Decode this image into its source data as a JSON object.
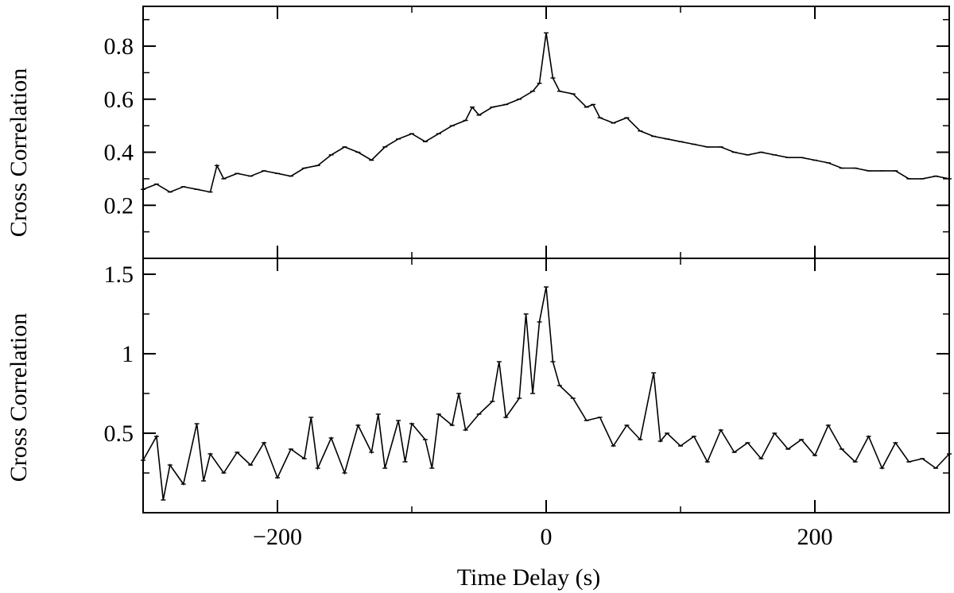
{
  "chart_data": [
    {
      "type": "line",
      "panel": "top",
      "title": "",
      "xlabel": "",
      "ylabel": "Cross Correlation",
      "xlim": [
        -300,
        300
      ],
      "ylim": [
        0.0,
        0.95
      ],
      "yticks": [
        0.2,
        0.4,
        0.6,
        0.8
      ],
      "ytick_labels": [
        "0.2",
        "0.4",
        "0.6",
        "0.8"
      ],
      "yminor": [
        0.1,
        0.3,
        0.5,
        0.7,
        0.9
      ],
      "grid": false,
      "series": [
        {
          "x": [
            -300,
            -290,
            -280,
            -270,
            -260,
            -250,
            -245,
            -240,
            -230,
            -220,
            -210,
            -200,
            -190,
            -180,
            -170,
            -160,
            -150,
            -140,
            -130,
            -120,
            -110,
            -100,
            -90,
            -80,
            -70,
            -60,
            -55,
            -50,
            -40,
            -30,
            -20,
            -10,
            -5,
            0,
            5,
            10,
            20,
            30,
            35,
            40,
            50,
            60,
            70,
            80,
            90,
            100,
            110,
            120,
            130,
            140,
            150,
            160,
            170,
            180,
            190,
            200,
            210,
            220,
            230,
            240,
            250,
            260,
            270,
            280,
            290,
            300
          ],
          "y": [
            0.26,
            0.28,
            0.25,
            0.27,
            0.26,
            0.25,
            0.35,
            0.3,
            0.32,
            0.31,
            0.33,
            0.32,
            0.31,
            0.34,
            0.35,
            0.39,
            0.42,
            0.4,
            0.37,
            0.42,
            0.45,
            0.47,
            0.44,
            0.47,
            0.5,
            0.52,
            0.57,
            0.54,
            0.57,
            0.58,
            0.6,
            0.63,
            0.66,
            0.85,
            0.68,
            0.63,
            0.62,
            0.57,
            0.58,
            0.53,
            0.51,
            0.53,
            0.48,
            0.46,
            0.45,
            0.44,
            0.43,
            0.42,
            0.42,
            0.4,
            0.39,
            0.4,
            0.39,
            0.38,
            0.38,
            0.37,
            0.36,
            0.34,
            0.34,
            0.33,
            0.33,
            0.33,
            0.3,
            0.3,
            0.31,
            0.3
          ]
        }
      ]
    },
    {
      "type": "line",
      "panel": "bottom",
      "title": "",
      "xlabel": "Time Delay (s)",
      "ylabel": "Cross Correlation",
      "xlim": [
        -300,
        300
      ],
      "ylim": [
        0.0,
        1.6
      ],
      "yticks": [
        0.5,
        1.0,
        1.5
      ],
      "ytick_labels": [
        "0.5",
        "1",
        "1.5"
      ],
      "yminor": [
        0.25,
        0.75,
        1.25
      ],
      "xticks": [
        -200,
        0,
        200
      ],
      "xtick_labels": [
        "−200",
        "0",
        "200"
      ],
      "xminor": [
        -300,
        -100,
        100,
        300
      ],
      "grid": false,
      "series": [
        {
          "x": [
            -300,
            -290,
            -285,
            -280,
            -270,
            -260,
            -255,
            -250,
            -240,
            -230,
            -220,
            -210,
            -200,
            -190,
            -180,
            -175,
            -170,
            -160,
            -150,
            -140,
            -130,
            -125,
            -120,
            -110,
            -105,
            -100,
            -90,
            -85,
            -80,
            -70,
            -65,
            -60,
            -50,
            -40,
            -35,
            -30,
            -20,
            -15,
            -10,
            -5,
            0,
            5,
            10,
            20,
            30,
            40,
            50,
            60,
            70,
            80,
            85,
            90,
            100,
            110,
            120,
            130,
            140,
            150,
            160,
            170,
            180,
            190,
            200,
            210,
            220,
            230,
            240,
            250,
            260,
            270,
            280,
            290,
            300
          ],
          "y": [
            0.33,
            0.48,
            0.08,
            0.3,
            0.18,
            0.56,
            0.2,
            0.37,
            0.25,
            0.38,
            0.3,
            0.44,
            0.22,
            0.4,
            0.34,
            0.6,
            0.28,
            0.47,
            0.25,
            0.55,
            0.38,
            0.62,
            0.28,
            0.58,
            0.32,
            0.56,
            0.46,
            0.28,
            0.62,
            0.55,
            0.75,
            0.52,
            0.62,
            0.7,
            0.95,
            0.6,
            0.72,
            1.25,
            0.75,
            1.2,
            1.42,
            0.95,
            0.8,
            0.72,
            0.58,
            0.6,
            0.42,
            0.55,
            0.46,
            0.88,
            0.45,
            0.5,
            0.42,
            0.48,
            0.32,
            0.52,
            0.38,
            0.44,
            0.34,
            0.5,
            0.4,
            0.46,
            0.36,
            0.55,
            0.4,
            0.32,
            0.48,
            0.28,
            0.44,
            0.32,
            0.34,
            0.28,
            0.37
          ]
        }
      ]
    }
  ]
}
